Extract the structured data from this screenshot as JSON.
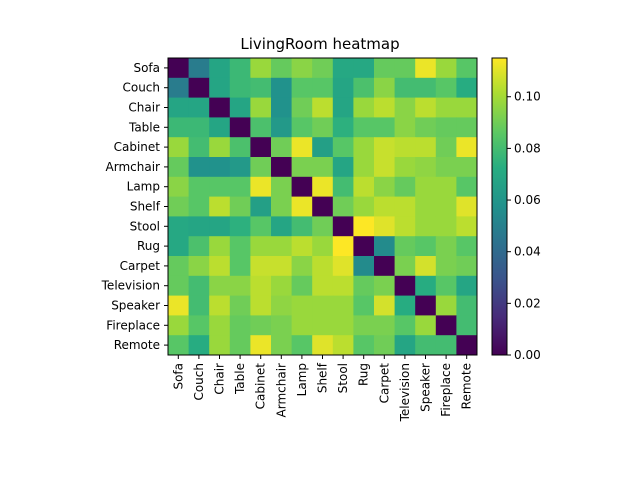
{
  "chart_data": {
    "type": "heatmap",
    "title": "LivingRoom heatmap",
    "xlabel": "",
    "ylabel": "",
    "colormap": "viridis",
    "color_range": [
      0,
      0.115
    ],
    "colorbar_ticks": [
      "0.00",
      "0.02",
      "0.04",
      "0.06",
      "0.08",
      "0.10"
    ],
    "labels": [
      "Sofa",
      "Couch",
      "Chair",
      "Table",
      "Cabinet",
      "Armchair",
      "Lamp",
      "Shelf",
      "Stool",
      "Rug",
      "Carpet",
      "Television",
      "Speaker",
      "Fireplace",
      "Remote"
    ],
    "values": [
      [
        0.0,
        0.048,
        0.068,
        0.078,
        0.098,
        0.088,
        0.095,
        0.09,
        0.07,
        0.07,
        0.088,
        0.088,
        0.112,
        0.098,
        0.085
      ],
      [
        0.048,
        0.0,
        0.068,
        0.078,
        0.08,
        0.058,
        0.085,
        0.085,
        0.068,
        0.082,
        0.095,
        0.08,
        0.08,
        0.085,
        0.072
      ],
      [
        0.068,
        0.068,
        0.0,
        0.068,
        0.098,
        0.058,
        0.09,
        0.104,
        0.068,
        0.098,
        0.104,
        0.095,
        0.104,
        0.098,
        0.098
      ],
      [
        0.078,
        0.078,
        0.068,
        0.0,
        0.082,
        0.062,
        0.085,
        0.09,
        0.074,
        0.085,
        0.085,
        0.095,
        0.09,
        0.088,
        0.088
      ],
      [
        0.098,
        0.08,
        0.098,
        0.082,
        0.0,
        0.09,
        0.112,
        0.065,
        0.085,
        0.098,
        0.106,
        0.104,
        0.104,
        0.09,
        0.112
      ],
      [
        0.088,
        0.058,
        0.058,
        0.062,
        0.09,
        0.0,
        0.092,
        0.092,
        0.068,
        0.098,
        0.106,
        0.098,
        0.096,
        0.092,
        0.092
      ],
      [
        0.095,
        0.085,
        0.085,
        0.085,
        0.112,
        0.092,
        0.0,
        0.112,
        0.08,
        0.104,
        0.095,
        0.088,
        0.098,
        0.098,
        0.085
      ],
      [
        0.09,
        0.085,
        0.104,
        0.09,
        0.065,
        0.092,
        0.112,
        0.0,
        0.09,
        0.098,
        0.104,
        0.104,
        0.098,
        0.098,
        0.11
      ],
      [
        0.07,
        0.068,
        0.068,
        0.074,
        0.085,
        0.068,
        0.08,
        0.09,
        0.0,
        0.115,
        0.11,
        0.104,
        0.098,
        0.098,
        0.104
      ],
      [
        0.07,
        0.082,
        0.098,
        0.085,
        0.098,
        0.098,
        0.104,
        0.098,
        0.115,
        0.0,
        0.055,
        0.088,
        0.085,
        0.092,
        0.085
      ],
      [
        0.088,
        0.095,
        0.104,
        0.085,
        0.106,
        0.106,
        0.095,
        0.104,
        0.11,
        0.055,
        0.0,
        0.092,
        0.108,
        0.092,
        0.09
      ],
      [
        0.088,
        0.08,
        0.095,
        0.095,
        0.104,
        0.098,
        0.088,
        0.104,
        0.104,
        0.088,
        0.092,
        0.0,
        0.072,
        0.085,
        0.068
      ],
      [
        0.112,
        0.08,
        0.104,
        0.09,
        0.104,
        0.096,
        0.098,
        0.098,
        0.098,
        0.085,
        0.108,
        0.072,
        0.0,
        0.098,
        0.08
      ],
      [
        0.098,
        0.085,
        0.098,
        0.088,
        0.09,
        0.092,
        0.098,
        0.098,
        0.098,
        0.092,
        0.092,
        0.085,
        0.098,
        0.0,
        0.08
      ],
      [
        0.085,
        0.072,
        0.098,
        0.088,
        0.112,
        0.092,
        0.085,
        0.11,
        0.104,
        0.085,
        0.09,
        0.068,
        0.08,
        0.08,
        0.0
      ]
    ]
  }
}
